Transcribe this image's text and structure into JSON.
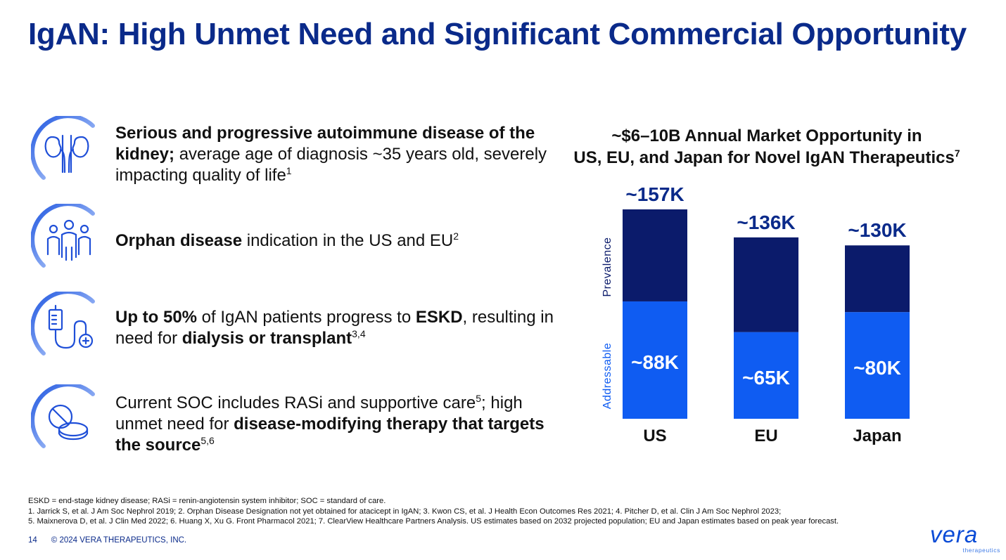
{
  "title": "IgAN: High Unmet Need and Significant Commercial Opportunity",
  "points": [
    {
      "icon": "kidneys-icon",
      "bold1": "Serious and progressive autoimmune disease of the kidney;",
      "text1": " average age of diagnosis ~35 years old, severely impacting quality of life",
      "sup": "1"
    },
    {
      "icon": "people-group-icon",
      "bold1": "Orphan disease",
      "text1": " indication in the US and EU",
      "sup": "2"
    },
    {
      "icon": "dialysis-icon",
      "bold1": "Up to 50%",
      "text1": " of IgAN patients progress to ",
      "bold2": "ESKD",
      "text2": ", resulting in need for ",
      "bold3": "dialysis or transplant",
      "sup": "3,4"
    },
    {
      "icon": "pills-icon",
      "text0": "Current SOC includes RASi and supportive care",
      "sup0": "5",
      "text1": "; high unmet need for ",
      "bold1": "disease-modifying therapy that targets the source",
      "sup": "5,6"
    }
  ],
  "chart_data": {
    "type": "bar",
    "stacked": true,
    "title_line1": "~$6–10B Annual Market Opportunity in",
    "title_line2": "US, EU, and Japan for Novel IgAN Therapeutics",
    "title_sup": "7",
    "categories": [
      "US",
      "EU",
      "Japan"
    ],
    "series": [
      {
        "name": "Addressable",
        "values": [
          88,
          65,
          80
        ],
        "labels": [
          "~88K",
          "~65K",
          "~80K"
        ],
        "color": "#0f5cf2"
      },
      {
        "name": "Prevalence",
        "values": [
          69,
          71,
          50
        ],
        "color": "#0b1b6b"
      }
    ],
    "totals": [
      157,
      136,
      130
    ],
    "total_labels": [
      "~157K",
      "~136K",
      "~130K"
    ],
    "ylabel_lower": "Addressable",
    "ylabel_upper": "Prevalence",
    "units": "thousand patients",
    "ylim": [
      0,
      170
    ],
    "legend": "none"
  },
  "footnotes": {
    "line1": "ESKD = end-stage kidney disease; RASi = renin-angiotensin system inhibitor; SOC = standard of care.",
    "line2": "1. Jarrick S, et al. J Am Soc Nephrol 2019; 2. Orphan Disease Designation not yet obtained for atacicept in IgAN; 3. Kwon CS, et al. J Health Econ Outcomes Res 2021; 4. Pitcher D, et al. Clin J Am Soc Nephrol 2023;",
    "line3": "5. Maixnerova D, et al. J Clin Med 2022; 6. Huang X, Xu G. Front Pharmacol 2021; 7. ClearView Healthcare Partners Analysis. US estimates based on 2032 projected population; EU and Japan estimates based on peak year forecast."
  },
  "footer": {
    "page": "14",
    "copyright": "© 2024 VERA THERAPEUTICS, INC."
  },
  "logo": {
    "word": "vera",
    "sub": "therapeutics"
  },
  "colors": {
    "title": "#0a2a8a",
    "dark_bar": "#0b1b6b",
    "light_bar": "#0f5cf2",
    "icon": "#1f4fd8"
  }
}
